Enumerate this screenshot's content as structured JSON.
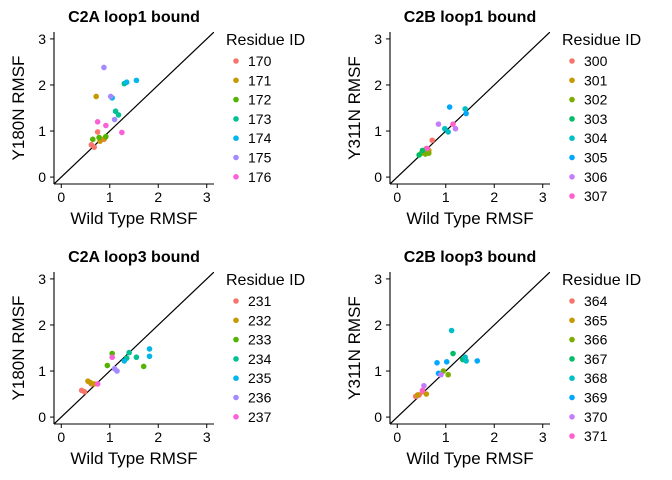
{
  "chart_data": [
    {
      "type": "scatter",
      "title": "C2A loop1 bound",
      "xlabel": "Wild Type RMSF",
      "ylabel": "Y180N RMSF",
      "xlim": [
        -0.15,
        3.15
      ],
      "ylim": [
        -0.15,
        3.15
      ],
      "xticks": [
        "0",
        "1",
        "2",
        "3"
      ],
      "yticks": [
        "0",
        "1",
        "2",
        "3"
      ],
      "reference_line": "y = x",
      "legend_title": "Residue ID",
      "series": [
        {
          "name": "170",
          "color": "#F8766D",
          "points": [
            [
              0.62,
              0.7
            ],
            [
              0.68,
              0.65
            ],
            [
              0.75,
              0.98
            ],
            [
              0.88,
              0.82
            ]
          ]
        },
        {
          "name": "171",
          "color": "#C49A00",
          "points": [
            [
              0.72,
              1.75
            ],
            [
              0.8,
              0.78
            ],
            [
              0.9,
              0.85
            ]
          ]
        },
        {
          "name": "172",
          "color": "#53B400",
          "points": [
            [
              0.65,
              0.82
            ],
            [
              0.78,
              0.86
            ],
            [
              0.92,
              0.88
            ]
          ]
        },
        {
          "name": "173",
          "color": "#00C094",
          "points": [
            [
              1.12,
              1.43
            ],
            [
              1.18,
              1.35
            ],
            [
              1.3,
              2.03
            ]
          ]
        },
        {
          "name": "174",
          "color": "#00B6EB",
          "points": [
            [
              1.35,
              2.06
            ],
            [
              1.55,
              2.1
            ],
            [
              1.05,
              1.72
            ]
          ]
        },
        {
          "name": "175",
          "color": "#A58AFF",
          "points": [
            [
              0.88,
              2.38
            ],
            [
              1.02,
              1.75
            ],
            [
              1.1,
              1.25
            ]
          ]
        },
        {
          "name": "176",
          "color": "#FB61D7",
          "points": [
            [
              0.75,
              1.2
            ],
            [
              1.25,
              0.97
            ],
            [
              0.92,
              1.12
            ]
          ]
        }
      ]
    },
    {
      "type": "scatter",
      "title": "C2B loop1 bound",
      "xlabel": "Wild Type RMSF",
      "ylabel": "Y311N RMSF",
      "xlim": [
        -0.15,
        3.15
      ],
      "ylim": [
        -0.15,
        3.15
      ],
      "xticks": [
        "0",
        "1",
        "2",
        "3"
      ],
      "yticks": [
        "0",
        "1",
        "2",
        "3"
      ],
      "reference_line": "y = x",
      "legend_title": "Residue ID",
      "series": [
        {
          "name": "300",
          "color": "#F8766D",
          "points": [
            [
              0.6,
              0.62
            ],
            [
              0.72,
              0.8
            ]
          ]
        },
        {
          "name": "301",
          "color": "#C49A00",
          "points": [
            [
              0.55,
              0.55
            ],
            [
              0.65,
              0.58
            ]
          ]
        },
        {
          "name": "302",
          "color": "#7CAE00",
          "points": [
            [
              0.5,
              0.52
            ],
            [
              0.58,
              0.5
            ],
            [
              0.65,
              0.52
            ]
          ]
        },
        {
          "name": "303",
          "color": "#00BE67",
          "points": [
            [
              0.45,
              0.48
            ],
            [
              0.52,
              0.58
            ]
          ]
        },
        {
          "name": "304",
          "color": "#00BFC4",
          "points": [
            [
              1.05,
              0.98
            ],
            [
              0.98,
              1.05
            ],
            [
              1.4,
              1.48
            ]
          ]
        },
        {
          "name": "305",
          "color": "#00A9FF",
          "points": [
            [
              1.08,
              1.52
            ],
            [
              1.42,
              1.38
            ]
          ]
        },
        {
          "name": "306",
          "color": "#C77CFF",
          "points": [
            [
              0.85,
              1.15
            ],
            [
              1.2,
              1.05
            ]
          ]
        },
        {
          "name": "307",
          "color": "#FF61CC",
          "points": [
            [
              0.62,
              0.62
            ],
            [
              1.15,
              1.15
            ]
          ]
        }
      ]
    },
    {
      "type": "scatter",
      "title": "C2A loop3 bound",
      "xlabel": "Wild Type RMSF",
      "ylabel": "Y180N RMSF",
      "xlim": [
        -0.15,
        3.15
      ],
      "ylim": [
        -0.15,
        3.15
      ],
      "xticks": [
        "0",
        "1",
        "2",
        "3"
      ],
      "yticks": [
        "0",
        "1",
        "2",
        "3"
      ],
      "reference_line": "y = x",
      "legend_title": "Residue ID",
      "series": [
        {
          "name": "231",
          "color": "#F8766D",
          "points": [
            [
              0.42,
              0.58
            ],
            [
              0.48,
              0.55
            ],
            [
              0.62,
              0.72
            ]
          ]
        },
        {
          "name": "232",
          "color": "#C49A00",
          "points": [
            [
              0.55,
              0.78
            ],
            [
              0.6,
              0.75
            ],
            [
              0.68,
              0.72
            ]
          ]
        },
        {
          "name": "233",
          "color": "#53B400",
          "points": [
            [
              0.95,
              1.12
            ],
            [
              1.05,
              1.38
            ],
            [
              1.7,
              1.1
            ]
          ]
        },
        {
          "name": "234",
          "color": "#00C094",
          "points": [
            [
              1.35,
              1.28
            ],
            [
              1.4,
              1.4
            ],
            [
              1.55,
              1.3
            ]
          ]
        },
        {
          "name": "235",
          "color": "#00B6EB",
          "points": [
            [
              1.3,
              1.22
            ],
            [
              1.82,
              1.48
            ],
            [
              1.82,
              1.32
            ]
          ]
        },
        {
          "name": "236",
          "color": "#A58AFF",
          "points": [
            [
              1.1,
              1.05
            ],
            [
              1.15,
              1.0
            ]
          ]
        },
        {
          "name": "237",
          "color": "#FB61D7",
          "points": [
            [
              0.75,
              0.72
            ],
            [
              1.05,
              1.3
            ]
          ]
        }
      ]
    },
    {
      "type": "scatter",
      "title": "C2B loop3 bound",
      "xlabel": "Wild Type RMSF",
      "ylabel": "Y311N RMSF",
      "xlim": [
        -0.15,
        3.15
      ],
      "ylim": [
        -0.15,
        3.15
      ],
      "xticks": [
        "0",
        "1",
        "2",
        "3"
      ],
      "yticks": [
        "0",
        "1",
        "2",
        "3"
      ],
      "reference_line": "y = x",
      "legend_title": "Residue ID",
      "series": [
        {
          "name": "364",
          "color": "#F8766D",
          "points": [
            [
              0.38,
              0.45
            ],
            [
              0.45,
              0.48
            ],
            [
              0.52,
              0.55
            ]
          ]
        },
        {
          "name": "365",
          "color": "#C49A00",
          "points": [
            [
              0.42,
              0.48
            ],
            [
              0.6,
              0.5
            ]
          ]
        },
        {
          "name": "366",
          "color": "#7CAE00",
          "points": [
            [
              0.95,
              1.0
            ],
            [
              1.05,
              0.92
            ]
          ]
        },
        {
          "name": "367",
          "color": "#00BE67",
          "points": [
            [
              1.15,
              1.38
            ],
            [
              1.35,
              1.25
            ]
          ]
        },
        {
          "name": "368",
          "color": "#00BFC4",
          "points": [
            [
              1.12,
              1.88
            ],
            [
              1.4,
              1.3
            ],
            [
              1.42,
              1.22
            ]
          ]
        },
        {
          "name": "369",
          "color": "#00A9FF",
          "points": [
            [
              0.82,
              1.18
            ],
            [
              1.02,
              1.2
            ],
            [
              1.65,
              1.22
            ],
            [
              0.85,
              0.95
            ]
          ]
        },
        {
          "name": "370",
          "color": "#C77CFF",
          "points": [
            [
              0.55,
              0.68
            ],
            [
              0.9,
              0.92
            ]
          ]
        },
        {
          "name": "371",
          "color": "#FF61CC",
          "points": [
            [
              0.52,
              0.58
            ]
          ]
        }
      ]
    }
  ]
}
